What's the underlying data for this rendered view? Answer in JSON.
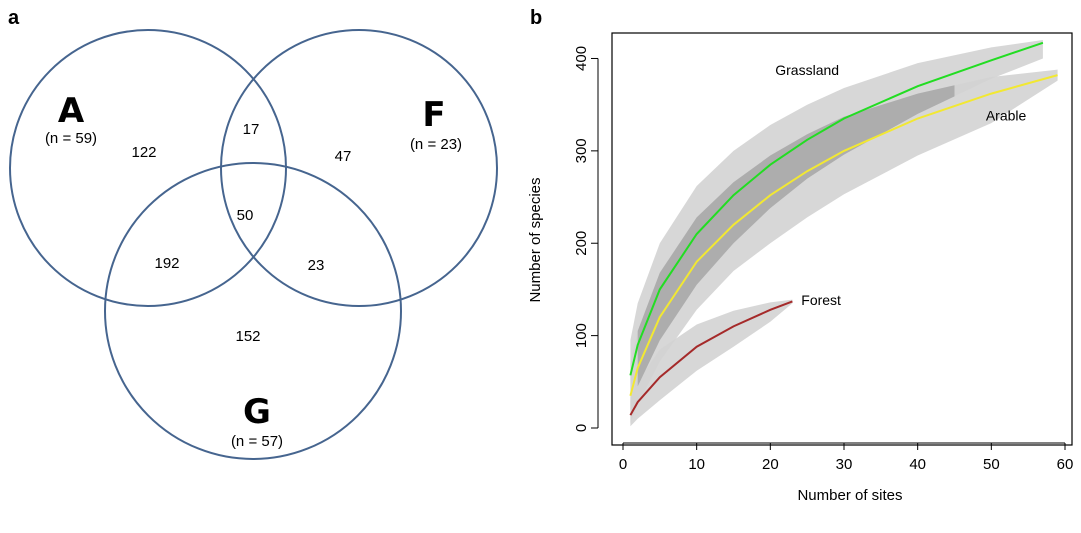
{
  "panel_a": {
    "label": "a",
    "sets": [
      {
        "letter": "A",
        "n_text": "(n = 59)"
      },
      {
        "letter": "F",
        "n_text": "(n = 23)"
      },
      {
        "letter": "G",
        "n_text": "(n = 57)"
      }
    ],
    "regions": {
      "A_only": "122",
      "F_only": "47",
      "G_only": "152",
      "A_F": "17",
      "A_G": "192",
      "F_G": "23",
      "A_F_G": "50"
    },
    "circle_color": "#46658f"
  },
  "panel_b": {
    "label": "b"
  },
  "chart_data": {
    "type": "line",
    "xlabel": "Number of sites",
    "ylabel": "Number of species",
    "xlim": [
      0,
      60
    ],
    "ylim": [
      0,
      420
    ],
    "xticks": [
      0,
      10,
      20,
      30,
      40,
      50,
      60
    ],
    "yticks": [
      0,
      100,
      200,
      300,
      400
    ],
    "grid": false,
    "series": [
      {
        "name": "Grassland",
        "color": "#22dd22",
        "x": [
          1,
          2,
          5,
          10,
          15,
          20,
          25,
          30,
          40,
          50,
          57
        ],
        "y": [
          57,
          90,
          150,
          210,
          252,
          285,
          312,
          335,
          370,
          398,
          417
        ],
        "lower": [
          20,
          45,
          95,
          155,
          200,
          238,
          270,
          296,
          340,
          378,
          400
        ],
        "upper": [
          95,
          135,
          200,
          262,
          300,
          328,
          350,
          368,
          395,
          412,
          420
        ]
      },
      {
        "name": "Arable",
        "color": "#f2e832",
        "x": [
          1,
          2,
          5,
          10,
          15,
          20,
          25,
          30,
          40,
          50,
          59
        ],
        "y": [
          35,
          65,
          120,
          180,
          220,
          252,
          278,
          300,
          335,
          362,
          382
        ],
        "lower": [
          5,
          25,
          72,
          128,
          170,
          200,
          228,
          253,
          295,
          330,
          376
        ],
        "upper": [
          70,
          105,
          168,
          228,
          266,
          295,
          318,
          337,
          362,
          380,
          388
        ]
      },
      {
        "name": "Forest",
        "color": "#a52a2a",
        "x": [
          1,
          2,
          5,
          10,
          15,
          20,
          23
        ],
        "y": [
          14,
          28,
          55,
          88,
          110,
          128,
          137
        ],
        "lower": [
          2,
          10,
          30,
          62,
          88,
          115,
          135
        ],
        "upper": [
          30,
          50,
          85,
          112,
          127,
          136,
          139
        ]
      }
    ],
    "band_color": "#d3d3d3",
    "overlap_color": "#a6a6a6"
  }
}
